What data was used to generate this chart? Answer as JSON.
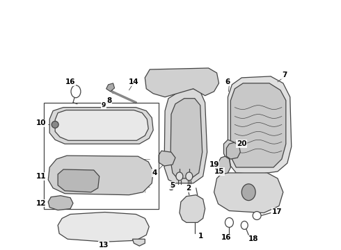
{
  "background_color": "#ffffff",
  "line_color": "#444444",
  "text_color": "#000000",
  "label_fontsize": 7.5,
  "lw": 0.9
}
